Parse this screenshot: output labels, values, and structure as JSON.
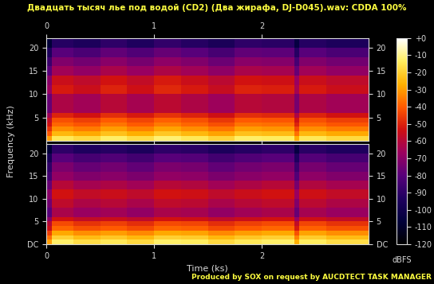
{
  "chart_data": {
    "type": "heatmap",
    "title": "Двадцать тысяч лье под водой (CD2) (Два жирафа, DJ-D045).wav: CDDA 100%",
    "x_label": "Time (ks)",
    "y_label": "Frequency (kHz)",
    "footer": "Produced by SOX on request by AUCDTECT TASK MANAGER",
    "xlim": [
      0,
      2.99
    ],
    "xticks": [
      0,
      1,
      2
    ],
    "ylim": [
      0,
      22.05
    ],
    "x_edges": [
      0,
      0.05,
      0.25,
      0.5,
      0.75,
      1.0,
      1.25,
      1.5,
      1.75,
      2.0,
      2.3,
      2.35,
      2.6,
      2.99
    ],
    "y_edges": [
      0,
      1,
      2,
      3,
      4,
      5,
      6,
      8,
      10,
      12,
      14,
      16,
      18,
      20,
      22.05
    ],
    "channels": [
      {
        "yticks": [
          5,
          10,
          15,
          20
        ],
        "cells": [
          [
            -30,
            -15,
            -18,
            -13,
            -17,
            -12,
            -15,
            -19,
            -13,
            -14,
            -27,
            -15,
            -18
          ],
          [
            -40,
            -25,
            -28,
            -23,
            -27,
            -22,
            -25,
            -29,
            -23,
            -24,
            -37,
            -25,
            -28
          ],
          [
            -47,
            -32,
            -35,
            -30,
            -34,
            -29,
            -32,
            -36,
            -30,
            -31,
            -44,
            -32,
            -35
          ],
          [
            -53,
            -38,
            -41,
            -36,
            -40,
            -35,
            -38,
            -42,
            -36,
            -37,
            -50,
            -38,
            -41
          ],
          [
            -57,
            -42,
            -45,
            -40,
            -44,
            -39,
            -42,
            -46,
            -40,
            -41,
            -54,
            -42,
            -45
          ],
          [
            -65,
            -50,
            -53,
            -48,
            -52,
            -47,
            -50,
            -54,
            -48,
            -49,
            -62,
            -50,
            -53
          ],
          [
            -77,
            -62,
            -65,
            -60,
            -64,
            -59,
            -62,
            -66,
            -60,
            -61,
            -74,
            -62,
            -65
          ],
          [
            -77,
            -62,
            -65,
            -60,
            -64,
            -59,
            -62,
            -66,
            -60,
            -61,
            -74,
            -62,
            -65
          ],
          [
            -67,
            -52,
            -55,
            -50,
            -54,
            -49,
            -52,
            -56,
            -50,
            -51,
            -64,
            -52,
            -55
          ],
          [
            -70,
            -55,
            -58,
            -53,
            -57,
            -52,
            -55,
            -59,
            -53,
            -54,
            -67,
            -55,
            -58
          ],
          [
            -80,
            -65,
            -68,
            -63,
            -67,
            -62,
            -65,
            -69,
            -63,
            -64,
            -77,
            -65,
            -68
          ],
          [
            -87,
            -72,
            -75,
            -70,
            -74,
            -69,
            -72,
            -76,
            -70,
            -71,
            -84,
            -72,
            -75
          ],
          [
            -95,
            -80,
            -83,
            -78,
            -82,
            -77,
            -80,
            -84,
            -78,
            -79,
            -92,
            -80,
            -83
          ],
          [
            -107,
            -92,
            -95,
            -90,
            -94,
            -89,
            -92,
            -96,
            -90,
            -91,
            -104,
            -92,
            -95
          ]
        ]
      },
      {
        "yticks": [
          {
            "value": 0,
            "label": "DC"
          },
          5,
          10,
          15,
          20
        ],
        "cells": [
          [
            -30,
            -13,
            -17,
            -15,
            -18,
            -13,
            -14,
            -18,
            -15,
            -13,
            -27,
            -14,
            -17
          ],
          [
            -37,
            -20,
            -24,
            -22,
            -25,
            -20,
            -21,
            -25,
            -22,
            -20,
            -34,
            -21,
            -24
          ],
          [
            -45,
            -28,
            -32,
            -30,
            -33,
            -28,
            -29,
            -33,
            -30,
            -28,
            -42,
            -29,
            -32
          ],
          [
            -55,
            -38,
            -42,
            -40,
            -43,
            -38,
            -39,
            -43,
            -40,
            -38,
            -52,
            -39,
            -42
          ],
          [
            -60,
            -43,
            -47,
            -45,
            -48,
            -43,
            -44,
            -48,
            -45,
            -43,
            -57,
            -44,
            -47
          ],
          [
            -70,
            -53,
            -57,
            -55,
            -58,
            -53,
            -54,
            -58,
            -55,
            -53,
            -67,
            -54,
            -57
          ],
          [
            -80,
            -63,
            -67,
            -65,
            -68,
            -63,
            -64,
            -68,
            -65,
            -63,
            -77,
            -64,
            -67
          ],
          [
            -75,
            -58,
            -62,
            -60,
            -63,
            -58,
            -59,
            -63,
            -60,
            -58,
            -72,
            -59,
            -62
          ],
          [
            -70,
            -53,
            -57,
            -55,
            -58,
            -53,
            -54,
            -58,
            -55,
            -53,
            -67,
            -54,
            -57
          ],
          [
            -77,
            -60,
            -64,
            -62,
            -65,
            -60,
            -61,
            -65,
            -62,
            -60,
            -74,
            -61,
            -64
          ],
          [
            -85,
            -68,
            -72,
            -70,
            -73,
            -68,
            -69,
            -73,
            -70,
            -68,
            -82,
            -69,
            -72
          ],
          [
            -90,
            -73,
            -77,
            -75,
            -78,
            -73,
            -74,
            -78,
            -75,
            -73,
            -87,
            -74,
            -77
          ],
          [
            -97,
            -80,
            -84,
            -82,
            -85,
            -80,
            -81,
            -85,
            -82,
            -80,
            -94,
            -81,
            -84
          ],
          [
            -107,
            -90,
            -94,
            -92,
            -95,
            -90,
            -91,
            -95,
            -92,
            -90,
            -104,
            -91,
            -94
          ]
        ]
      }
    ],
    "colorbar": {
      "label": "dBFS",
      "range": [
        -120,
        0
      ],
      "ticks": [
        {
          "value": 0,
          "label": "+0"
        },
        -10,
        -20,
        -30,
        -40,
        -50,
        -60,
        -70,
        -80,
        -90,
        -100,
        -110,
        -120
      ]
    }
  }
}
